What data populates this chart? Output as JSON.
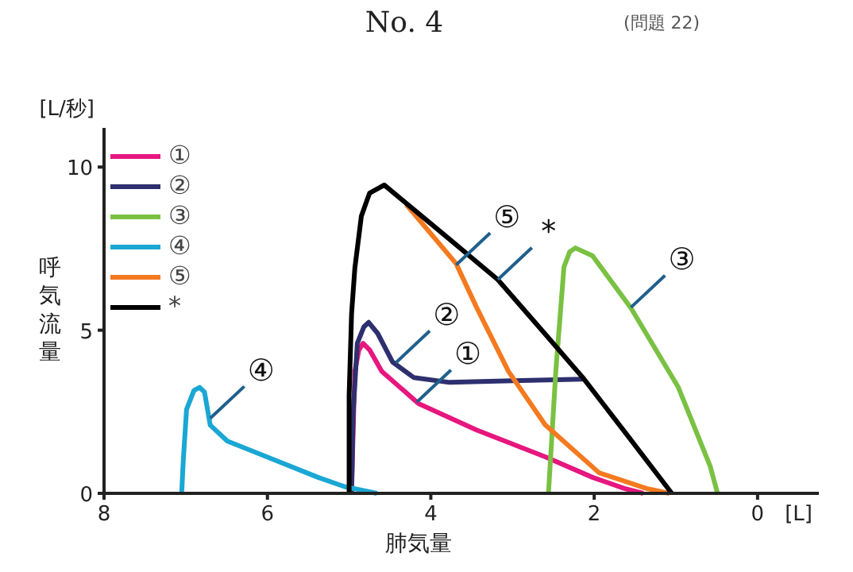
{
  "chart_data": {
    "type": "line",
    "title": "No. 4",
    "subtitle": "(問題 22)",
    "xlabel": "肺気量",
    "ylabel": "呼気流量",
    "xlim": [
      8,
      -0.75
    ],
    "ylim": [
      0,
      11.2
    ],
    "xticks": [
      8,
      6,
      4,
      2,
      0
    ],
    "yticks": [
      0,
      5,
      10
    ],
    "legend": "top left",
    "grid": false,
    "line_style": "solid",
    "series": [
      {
        "name": "①",
        "color": "#e6177e",
        "x": [
          4.97,
          4.95,
          4.93,
          4.88,
          4.83,
          4.75,
          4.6,
          4.15,
          3.44,
          2.6,
          2.02,
          1.63,
          1.4
        ],
        "values": [
          0,
          2.0,
          3.74,
          4.4,
          4.6,
          4.4,
          3.74,
          2.75,
          1.94,
          1.12,
          0.49,
          0.15,
          0
        ]
      },
      {
        "name": "②",
        "color": "#2e2f6e",
        "x": [
          4.97,
          4.95,
          4.9,
          4.82,
          4.76,
          4.65,
          4.47,
          4.21,
          3.77,
          3.0,
          2.14
        ],
        "values": [
          0,
          2.5,
          4.6,
          5.1,
          5.24,
          4.9,
          4.03,
          3.55,
          3.4,
          3.45,
          3.5
        ]
      },
      {
        "name": "③",
        "color": "#7ac143",
        "x": [
          2.56,
          2.47,
          2.37,
          2.3,
          2.23,
          2.02,
          1.55,
          0.97,
          0.58,
          0.49
        ],
        "values": [
          0,
          3.74,
          6.94,
          7.4,
          7.52,
          7.28,
          5.68,
          3.25,
          0.83,
          0
        ]
      },
      {
        "name": "④",
        "color": "#1aa7d4",
        "x": [
          7.05,
          7.03,
          6.99,
          6.9,
          6.83,
          6.77,
          6.7,
          6.49,
          5.96,
          5.38,
          5.05,
          4.66
        ],
        "values": [
          0,
          1.0,
          2.57,
          3.15,
          3.25,
          3.1,
          2.09,
          1.6,
          1.07,
          0.49,
          0.2,
          0
        ]
      },
      {
        "name": "⑤",
        "color": "#f47a20",
        "x": [
          4.3,
          3.69,
          3.44,
          3.05,
          2.6,
          1.94,
          1.36,
          1.08
        ],
        "values": [
          8.85,
          7.04,
          5.7,
          3.74,
          2.1,
          0.63,
          0.15,
          0
        ]
      },
      {
        "name": "*",
        "color": "#000000",
        "x": [
          5.0,
          5.0,
          4.97,
          4.93,
          4.85,
          4.75,
          4.57,
          4.21,
          3.8,
          3.18,
          2.6,
          2.14,
          1.6,
          1.05
        ],
        "values": [
          0,
          3,
          5.5,
          6.9,
          8.5,
          9.2,
          9.45,
          8.7,
          7.85,
          6.55,
          4.88,
          3.55,
          1.8,
          0
        ]
      }
    ],
    "annotations": [
      "[L/秒]",
      "[L]",
      {
        "text": "①",
        "x": 4.17,
        "y": 2.8
      },
      {
        "text": "②",
        "x": 4.43,
        "y": 4.0
      },
      {
        "text": "③",
        "x": 1.55,
        "y": 5.7
      },
      {
        "text": "④",
        "x": 6.7,
        "y": 2.3
      },
      {
        "text": "⑤",
        "x": 3.69,
        "y": 7.0
      },
      {
        "text": "*",
        "x": 3.18,
        "y": 6.55
      }
    ]
  }
}
